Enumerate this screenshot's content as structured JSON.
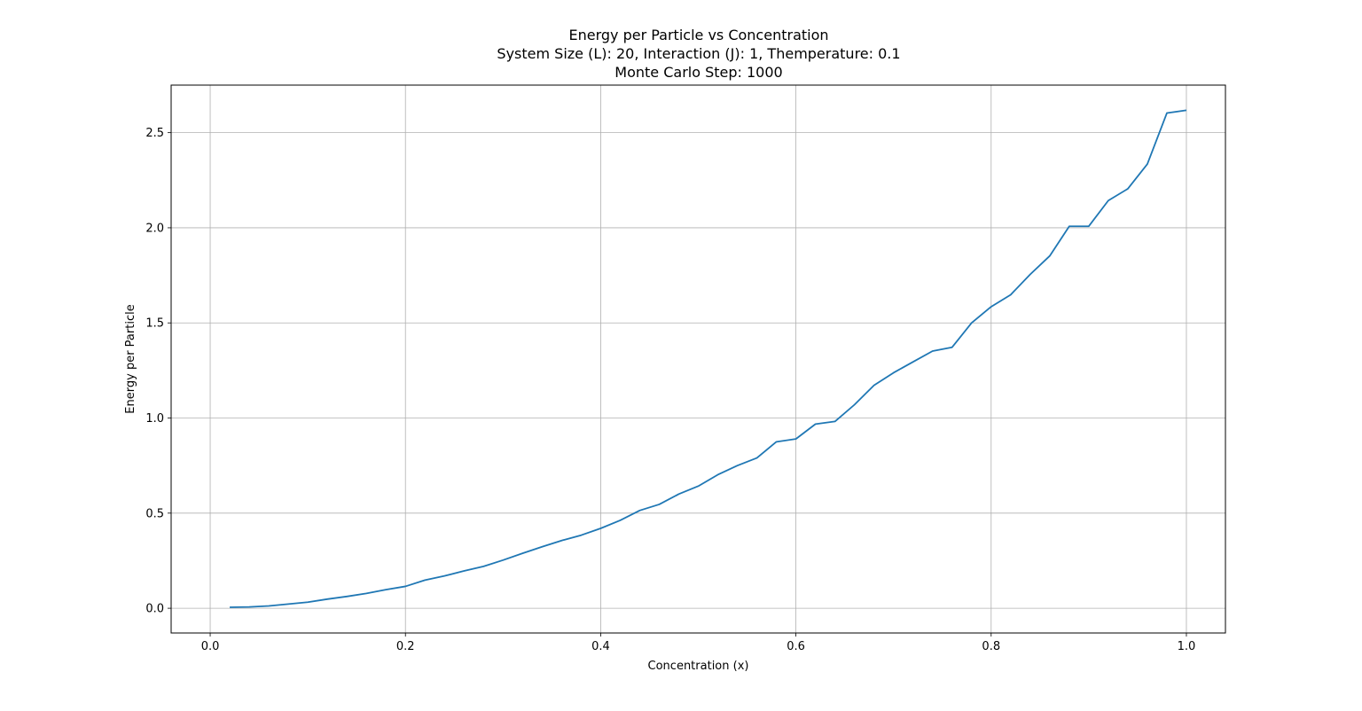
{
  "chart_data": {
    "type": "line",
    "title_lines": [
      "Energy per Particle vs Concentration",
      "System Size (L): 20, Interaction (J): 1, Themperature: 0.1",
      "Monte Carlo Step: 1000"
    ],
    "xlabel": "Concentration (x)",
    "ylabel": "Energy per Particle",
    "xlim": [
      -0.04,
      1.04
    ],
    "ylim": [
      -0.13,
      2.75
    ],
    "xticks": [
      0.0,
      0.2,
      0.4,
      0.6,
      0.8,
      1.0
    ],
    "xtick_labels": [
      "0.0",
      "0.2",
      "0.4",
      "0.6",
      "0.8",
      "1.0"
    ],
    "yticks": [
      0.0,
      0.5,
      1.0,
      1.5,
      2.0,
      2.5
    ],
    "ytick_labels": [
      "0.0",
      "0.5",
      "1.0",
      "1.5",
      "2.0",
      "2.5"
    ],
    "grid": true,
    "line_color": "#1f77b4",
    "x": [
      0.02,
      0.04,
      0.06,
      0.08,
      0.1,
      0.12,
      0.14,
      0.16,
      0.18,
      0.2,
      0.22,
      0.24,
      0.26,
      0.28,
      0.3,
      0.32,
      0.34,
      0.36,
      0.38,
      0.4,
      0.42,
      0.44,
      0.46,
      0.48,
      0.5,
      0.52,
      0.54,
      0.56,
      0.58,
      0.6,
      0.62,
      0.64,
      0.66,
      0.68,
      0.7,
      0.72,
      0.74,
      0.76,
      0.78,
      0.8,
      0.82,
      0.84,
      0.86,
      0.88,
      0.9,
      0.92,
      0.94,
      0.96,
      0.98,
      1.0
    ],
    "y": [
      0.005,
      0.007,
      0.012,
      0.022,
      0.032,
      0.048,
      0.062,
      0.078,
      0.098,
      0.115,
      0.148,
      0.17,
      0.196,
      0.22,
      0.253,
      0.289,
      0.323,
      0.356,
      0.384,
      0.42,
      0.462,
      0.514,
      0.546,
      0.6,
      0.642,
      0.702,
      0.75,
      0.79,
      0.875,
      0.89,
      0.968,
      0.982,
      1.07,
      1.172,
      1.238,
      1.295,
      1.352,
      1.372,
      1.5,
      1.585,
      1.648,
      1.755,
      1.852,
      2.008,
      2.008,
      2.143,
      2.205,
      2.335,
      2.603,
      2.618
    ]
  }
}
